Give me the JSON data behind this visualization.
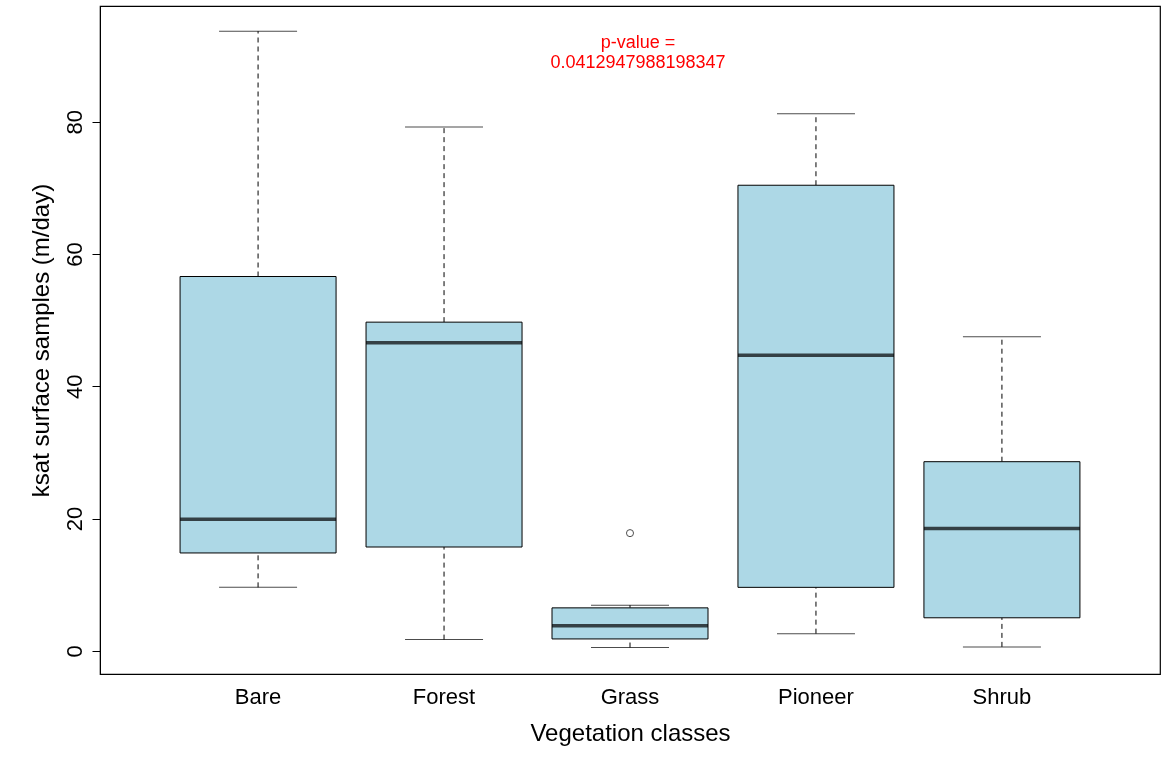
{
  "chart_data": {
    "type": "box",
    "xlabel": "Vegetation classes",
    "ylabel": "ksat surface samples (m/day)",
    "categories": [
      "Bare",
      "Forest",
      "Grass",
      "Pioneer",
      "Shrub"
    ],
    "boxes": [
      {
        "low": 9.6,
        "q1": 14.8,
        "median": 19.9,
        "q3": 56.6,
        "high": 93.7
      },
      {
        "low": 1.7,
        "q1": 15.7,
        "median": 46.6,
        "q3": 49.7,
        "high": 79.2
      },
      {
        "low": 0.5,
        "q1": 1.8,
        "median": 3.8,
        "q3": 6.5,
        "high": 6.9,
        "outliers": [
          17.8
        ]
      },
      {
        "low": 2.6,
        "q1": 9.6,
        "median": 44.7,
        "q3": 70.4,
        "high": 81.2
      },
      {
        "low": 0.6,
        "q1": 5.0,
        "median": 18.5,
        "q3": 28.6,
        "high": 47.5
      }
    ],
    "color": "#add8e6",
    "ylim": [
      -3.5,
      97.5
    ],
    "yticks": [
      0,
      20,
      40,
      60,
      80
    ],
    "annotations": [
      "p-value =\n0.0412947988198347"
    ],
    "grid": false
  }
}
